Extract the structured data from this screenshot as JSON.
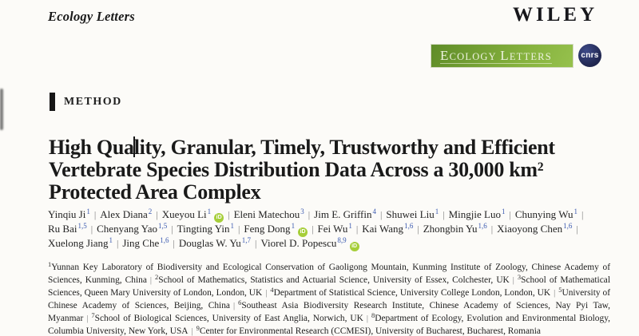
{
  "page": {
    "background": "#fcfbf8"
  },
  "masthead": {
    "journal_name": "Ecology Letters",
    "publisher_logo": "WILEY",
    "banner": {
      "text": "ECOLOGY LETTERS"
    },
    "cnrs_badge": {
      "text": "cnrs"
    }
  },
  "article": {
    "section_label": "METHOD",
    "title_lines": [
      "High Quality, Granular, Timely, Trustworthy and Efficient",
      "Vertebrate Species Distribution Data Across a 30,000 km²",
      "Protected Area Complex"
    ],
    "cursor": {
      "line_index": 0,
      "char_index": 8
    }
  },
  "separator": "|",
  "author_lines": [
    {
      "authors": [
        {
          "name": "Yinqiu Ji",
          "sup": "1",
          "orcid": false
        },
        {
          "name": "Alex Diana",
          "sup": "2",
          "orcid": false
        },
        {
          "name": "Xueyou Li",
          "sup": "1",
          "orcid": true
        },
        {
          "name": "Eleni Matechou",
          "sup": "3",
          "orcid": false
        },
        {
          "name": "Jim E. Griffin",
          "sup": "4",
          "orcid": false
        },
        {
          "name": "Shuwei Liu",
          "sup": "1",
          "orcid": false
        },
        {
          "name": "Mingjie Luo",
          "sup": "1",
          "orcid": false
        },
        {
          "name": "Chunying Wu",
          "sup": "1",
          "orcid": false
        }
      ],
      "trailing_separator": true
    },
    {
      "authors": [
        {
          "name": "Ru Bai",
          "sup": "1,5",
          "orcid": false
        },
        {
          "name": "Chenyang Yao",
          "sup": "1,5",
          "orcid": false
        },
        {
          "name": "Tingting Yin",
          "sup": "1",
          "orcid": false
        },
        {
          "name": "Feng Dong",
          "sup": "1",
          "orcid": true
        },
        {
          "name": "Fei Wu",
          "sup": "1",
          "orcid": false
        },
        {
          "name": "Kai Wang",
          "sup": "1,6",
          "orcid": false
        },
        {
          "name": "Zhongbin Yu",
          "sup": "1,6",
          "orcid": false
        },
        {
          "name": "Xiaoyong Chen",
          "sup": "1,6",
          "orcid": false
        }
      ],
      "trailing_separator": true
    },
    {
      "authors": [
        {
          "name": "Xuelong Jiang",
          "sup": "1",
          "orcid": false
        },
        {
          "name": "Jing Che",
          "sup": "1,6",
          "orcid": false
        },
        {
          "name": "Douglas W. Yu",
          "sup": "1,7",
          "orcid": false
        },
        {
          "name": "Viorel D. Popescu",
          "sup": "8,9",
          "orcid": true
        }
      ],
      "trailing_separator": false
    }
  ],
  "affiliations": [
    {
      "sup": "1",
      "text": "Yunnan Key Laboratory of Biodiversity and Ecological Conservation of Gaoligong Mountain, Kunming Institute of Zoology, Chinese Academy of Sciences, Kunming, China"
    },
    {
      "sup": "2",
      "text": "School of Mathematics, Statistics and Actuarial Science, University of Essex, Colchester, UK"
    },
    {
      "sup": "3",
      "text": "School of Mathematical Sciences, Queen Mary University of London, London, UK"
    },
    {
      "sup": "4",
      "text": "Department of Statistical Science, University College London, London, UK"
    },
    {
      "sup": "5",
      "text": "University of Chinese Academy of Sciences, Beijing, China"
    },
    {
      "sup": "6",
      "text": "Southeast Asia Biodiversity Research Institute, Chinese Academy of Sciences, Nay Pyi Taw, Myanmar"
    },
    {
      "sup": "7",
      "text": "School of Biological Sciences, University of East Anglia, Norwich, UK"
    },
    {
      "sup": "8",
      "text": "Department of Ecology, Evolution and Environmental Biology, Columbia University, New York, USA"
    },
    {
      "sup": "9",
      "text": "Center for Environmental Research (CCMESI), University of Bucharest, Bucharest, Romania"
    }
  ],
  "colors": {
    "orcid_green": "#a6ce39",
    "separator_gray": "#7d7d7d",
    "superscript_blue": "#3b5ab0",
    "banner_green_start": "#5f8c28",
    "banner_green_mid": "#86b23e",
    "banner_green_end": "#96c14d",
    "cnrs_navy": "#20264f"
  }
}
